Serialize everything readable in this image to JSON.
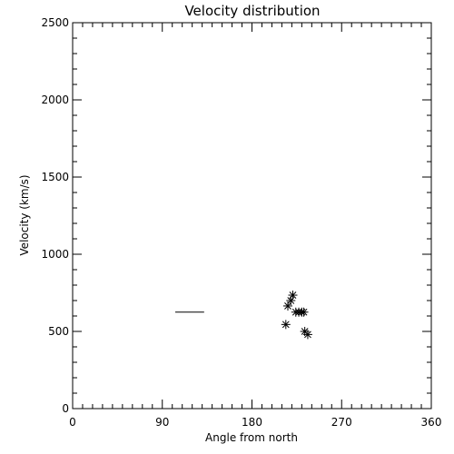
{
  "chart_data": {
    "type": "scatter",
    "title": "Velocity distribution",
    "xlabel": "Angle from north",
    "ylabel": "Velocity (km/s)",
    "xlim": [
      0,
      360
    ],
    "ylim": [
      0,
      2500
    ],
    "x_ticks": [
      0,
      90,
      180,
      270,
      360
    ],
    "y_ticks": [
      0,
      500,
      1000,
      1500,
      2000,
      2500
    ],
    "x_minor_step": 10,
    "y_minor_step": 100,
    "grid": false,
    "legend": "none",
    "marker": "asterisk",
    "color": "#000000",
    "segments": [
      {
        "x": [
          103,
          132
        ],
        "y": [
          625,
          625
        ]
      }
    ],
    "points": [
      {
        "x": 214,
        "y": 545
      },
      {
        "x": 216,
        "y": 665
      },
      {
        "x": 219,
        "y": 700
      },
      {
        "x": 221,
        "y": 735
      },
      {
        "x": 224,
        "y": 625
      },
      {
        "x": 227,
        "y": 625
      },
      {
        "x": 230,
        "y": 625
      },
      {
        "x": 232,
        "y": 625
      },
      {
        "x": 233,
        "y": 500
      },
      {
        "x": 236,
        "y": 480
      }
    ]
  }
}
